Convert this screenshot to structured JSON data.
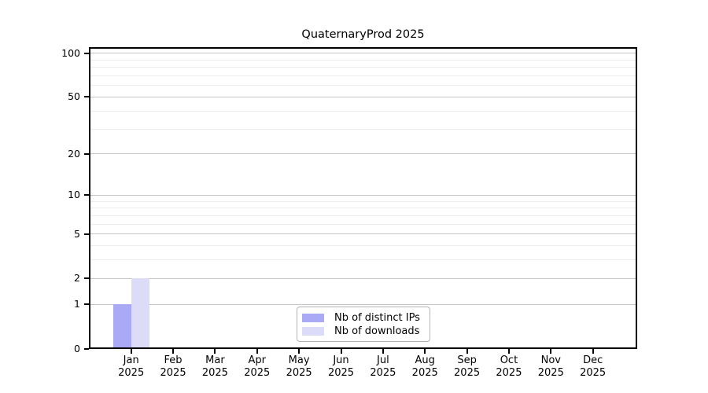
{
  "chart_data": {
    "type": "bar",
    "title": "QuaternaryProd 2025",
    "categories": [
      "Jan",
      "Feb",
      "Mar",
      "Apr",
      "May",
      "Jun",
      "Jul",
      "Aug",
      "Sep",
      "Oct",
      "Nov",
      "Dec"
    ],
    "x_sublabel": "2025",
    "series": [
      {
        "name": "Nb of distinct IPs",
        "color": "#a9a9f5",
        "values": [
          1,
          0,
          0,
          0,
          0,
          0,
          0,
          0,
          0,
          0,
          0,
          0
        ]
      },
      {
        "name": "Nb of downloads",
        "color": "#dcdcf8",
        "values": [
          2,
          0,
          0,
          0,
          0,
          0,
          0,
          0,
          0,
          0,
          0,
          0
        ]
      }
    ],
    "xlabel": "",
    "ylabel": "",
    "y_scale": "log10(value+1)",
    "ylim": [
      0,
      110
    ],
    "y_ticks": [
      0,
      1,
      2,
      5,
      10,
      20,
      50,
      100
    ],
    "y_minor_ticks": [
      3,
      4,
      6,
      7,
      8,
      9,
      30,
      40,
      60,
      70,
      80,
      90
    ],
    "grid": "horizontal-major-and-minor",
    "legend_position": "lower center"
  }
}
